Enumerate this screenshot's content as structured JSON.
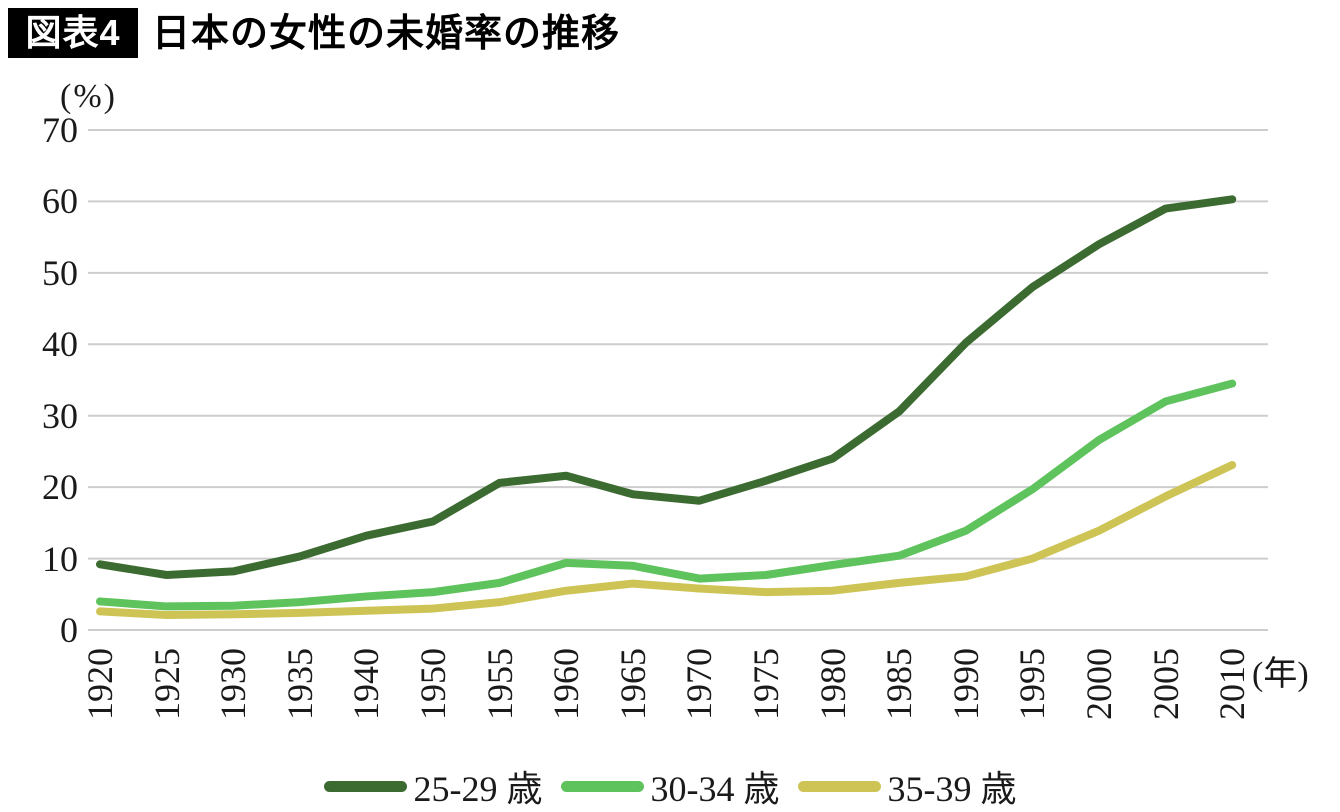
{
  "header": {
    "badge": "図表4",
    "title": "日本の女性の未婚率の推移"
  },
  "chart_data": {
    "type": "line",
    "title": "日本の女性の未婚率の推移",
    "y_unit_label": "(%)",
    "x_unit_label": "(年)",
    "categories": [
      "1920",
      "1925",
      "1930",
      "1935",
      "1940",
      "1950",
      "1955",
      "1960",
      "1965",
      "1970",
      "1975",
      "1980",
      "1985",
      "1990",
      "1995",
      "2000",
      "2005",
      "2010"
    ],
    "series": [
      {
        "name": "25-29 歳",
        "color": "#3c6b31",
        "values": [
          9.2,
          7.7,
          8.2,
          10.3,
          13.2,
          15.2,
          20.6,
          21.6,
          19.0,
          18.1,
          20.9,
          24.0,
          30.6,
          40.2,
          48.0,
          54.0,
          59.0,
          60.3
        ]
      },
      {
        "name": "30-34 歳",
        "color": "#5ec35d",
        "values": [
          4.0,
          3.3,
          3.4,
          3.9,
          4.7,
          5.3,
          6.6,
          9.4,
          9.0,
          7.2,
          7.7,
          9.1,
          10.4,
          13.9,
          19.7,
          26.6,
          32.0,
          34.5
        ]
      },
      {
        "name": "35-39 歳",
        "color": "#cdc455",
        "values": [
          2.6,
          2.1,
          2.2,
          2.4,
          2.7,
          3.0,
          3.9,
          5.5,
          6.5,
          5.8,
          5.3,
          5.5,
          6.6,
          7.5,
          10.0,
          13.9,
          18.7,
          23.1
        ]
      }
    ],
    "ylim": [
      0,
      70
    ],
    "yticks": [
      0,
      10,
      20,
      30,
      40,
      50,
      60,
      70
    ],
    "grid": "horizontal",
    "grid_color": "#cdcdcd",
    "legend_position": "bottom"
  }
}
